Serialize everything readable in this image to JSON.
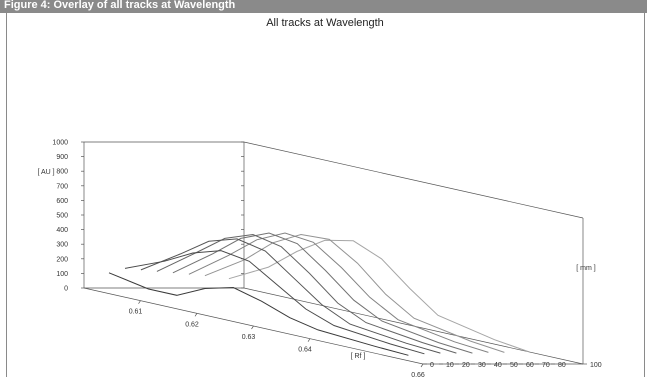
{
  "figure": {
    "header_text": "Figure 4: Overlay of all tracks at Wavelength"
  },
  "chart_data": {
    "type": "line",
    "title": "All tracks at Wavelength",
    "xlabel": "[ Rf ]",
    "ylabel": "[ AU ]",
    "zlabel": "[ mm ]",
    "x_ticks": [
      "0.61",
      "0.62",
      "0.63",
      "0.64",
      "0.66"
    ],
    "y_ticks": [
      "0",
      "100",
      "200",
      "300",
      "400",
      "500",
      "600",
      "700",
      "800",
      "900",
      "1000"
    ],
    "z_ticks": [
      "0",
      "10",
      "20",
      "30",
      "40",
      "50",
      "60",
      "70",
      "80",
      "100"
    ],
    "xlim": [
      0.6,
      0.66
    ],
    "ylim": [
      0,
      1000
    ],
    "zlim": [
      0,
      100
    ],
    "series": [
      {
        "track_mm": 5,
        "color": "#3a3a3a",
        "x": [
          0.603,
          0.61,
          0.615,
          0.62,
          0.625,
          0.63,
          0.635,
          0.64,
          0.65,
          0.656
        ],
        "values": [
          130,
          80,
          80,
          170,
          220,
          170,
          100,
          60,
          35,
          25
        ]
      },
      {
        "track_mm": 15,
        "color": "#4a4a4a",
        "x": [
          0.603,
          0.61,
          0.615,
          0.62,
          0.625,
          0.63,
          0.635,
          0.64,
          0.65,
          0.656
        ],
        "values": [
          160,
          270,
          370,
          430,
          400,
          280,
          160,
          90,
          50,
          35
        ]
      },
      {
        "track_mm": 25,
        "color": "#555555",
        "x": [
          0.603,
          0.61,
          0.615,
          0.62,
          0.625,
          0.63,
          0.635,
          0.64,
          0.65,
          0.656
        ],
        "values": [
          150,
          320,
          450,
          510,
          470,
          330,
          190,
          100,
          55,
          40
        ]
      },
      {
        "track_mm": 35,
        "color": "#646464",
        "x": [
          0.603,
          0.61,
          0.615,
          0.62,
          0.625,
          0.63,
          0.635,
          0.64,
          0.65,
          0.656
        ],
        "values": [
          140,
          330,
          470,
          540,
          500,
          360,
          200,
          110,
          60,
          40
        ]
      },
      {
        "track_mm": 45,
        "color": "#727272",
        "x": [
          0.603,
          0.61,
          0.615,
          0.62,
          0.625,
          0.63,
          0.635,
          0.64,
          0.65,
          0.656
        ],
        "values": [
          130,
          320,
          470,
          550,
          520,
          380,
          220,
          120,
          60,
          40
        ]
      },
      {
        "track_mm": 55,
        "color": "#828282",
        "x": [
          0.603,
          0.61,
          0.615,
          0.62,
          0.625,
          0.63,
          0.635,
          0.64,
          0.65,
          0.656
        ],
        "values": [
          120,
          310,
          460,
          550,
          530,
          400,
          240,
          130,
          65,
          45
        ]
      },
      {
        "track_mm": 65,
        "color": "#939393",
        "x": [
          0.603,
          0.61,
          0.615,
          0.62,
          0.625,
          0.63,
          0.635,
          0.64,
          0.65,
          0.656
        ],
        "values": [
          110,
          280,
          440,
          540,
          550,
          430,
          260,
          140,
          70,
          45
        ]
      },
      {
        "track_mm": 80,
        "color": "#a6a6a6",
        "x": [
          0.603,
          0.61,
          0.615,
          0.62,
          0.625,
          0.63,
          0.635,
          0.64,
          0.65,
          0.656
        ],
        "values": [
          90,
          230,
          380,
          500,
          540,
          460,
          300,
          160,
          80,
          50
        ]
      }
    ]
  }
}
